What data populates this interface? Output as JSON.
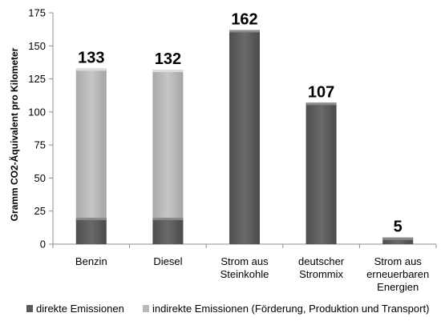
{
  "chart_data": {
    "type": "bar",
    "stacked": true,
    "categories": [
      [
        "Benzin"
      ],
      [
        "Diesel"
      ],
      [
        "Strom aus",
        "Steinkohle"
      ],
      [
        "deutscher",
        "Strommix"
      ],
      [
        "Strom aus",
        "erneuerbaren",
        "Energien"
      ]
    ],
    "series": [
      {
        "name": "direkte Emissionen",
        "values": [
          20,
          20,
          162,
          107,
          5
        ]
      },
      {
        "name": "indirekte Emissionen (Förderung, Produktion und Transport)",
        "values": [
          113,
          112,
          0,
          0,
          0
        ]
      }
    ],
    "totals": [
      "133",
      "132",
      "162",
      "107",
      "5"
    ],
    "ylabel": "Gramm CO2-Äquivalent pro Kilometer",
    "xlabel": "",
    "ylim": [
      0,
      175
    ],
    "yticks": [
      0,
      25,
      50,
      75,
      100,
      125,
      150,
      175
    ],
    "grid": false,
    "legend_position": "bottom",
    "colors": {
      "direkte": "#5a5a5a",
      "indirekte": "#b8b8b8",
      "axis": "#8c8c8c"
    }
  }
}
